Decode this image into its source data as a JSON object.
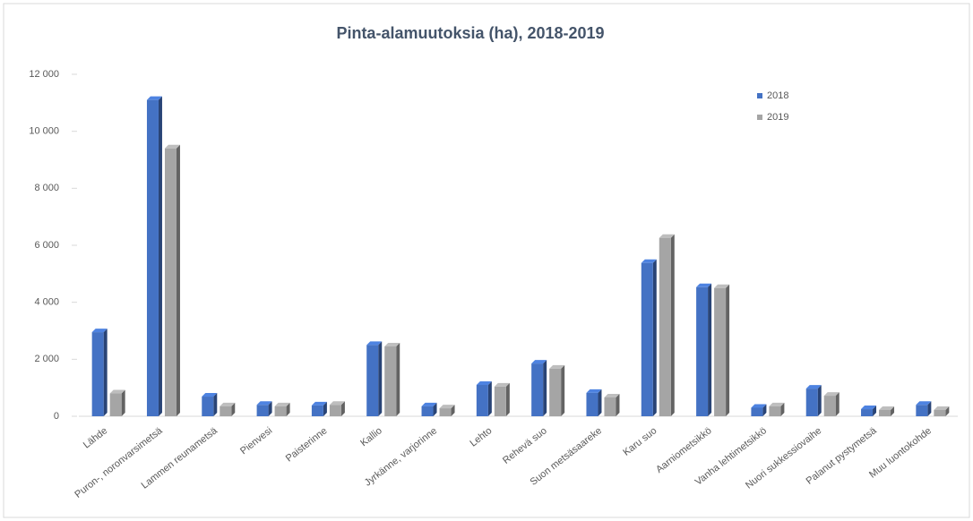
{
  "chart_data": {
    "type": "bar",
    "title": "Pinta-alamuutoksia (ha), 2018-2019",
    "categories": [
      "Lähde",
      "Puron-, noronvarsimetsä",
      "Lammen reunametsä",
      "Pienvesi",
      "Paisterinne",
      "Kallio",
      "Jyrkänne, varjorinne",
      "Lehto",
      "Rehevä suo",
      "Suon metsäsaareke",
      "Karu suo",
      "Aarniometsikkö",
      "Vanha lehtimetsikkö",
      "Nuori sukkessiovaihe",
      "Palanut pystymetsä",
      "Muu luontokohde"
    ],
    "series": [
      {
        "name": "2018",
        "color": "#4472c4",
        "values": [
          2950,
          11100,
          690,
          400,
          380,
          2500,
          350,
          1100,
          1850,
          820,
          5380,
          4530,
          300,
          970,
          250,
          400
        ]
      },
      {
        "name": "2019",
        "color": "#a5a5a5",
        "values": [
          800,
          9400,
          350,
          350,
          400,
          2450,
          280,
          1040,
          1670,
          660,
          6260,
          4500,
          350,
          720,
          220,
          220
        ]
      }
    ],
    "ylim": [
      0,
      12000
    ],
    "yticks": [
      0,
      {
        "value": 2000,
        "label": "2 000"
      },
      {
        "value": 4000,
        "label": "4 000"
      },
      {
        "value": 6000,
        "label": "6 000"
      },
      {
        "value": 8000,
        "label": "8 000"
      },
      {
        "value": 10000,
        "label": "10 000"
      },
      {
        "value": 12000,
        "label": "12 000"
      }
    ],
    "grid": false,
    "legend": "top-right"
  }
}
